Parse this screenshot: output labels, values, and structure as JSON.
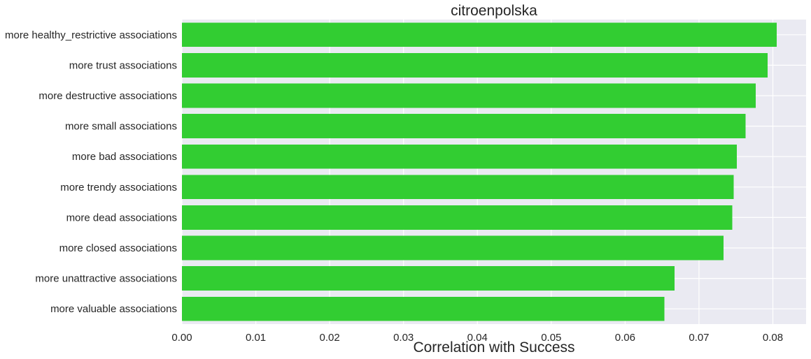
{
  "chart_data": {
    "type": "bar",
    "orientation": "horizontal",
    "title": "citroenpolska",
    "xlabel": "Correlation with Success",
    "ylabel": "",
    "categories": [
      "more healthy_restrictive associations",
      "more trust associations",
      "more destructive associations",
      "more small associations",
      "more bad associations",
      "more trendy associations",
      "more dead associations",
      "more closed associations",
      "more unattractive associations",
      "more valuable associations"
    ],
    "values": [
      0.0805,
      0.0793,
      0.0777,
      0.0763,
      0.0751,
      0.0747,
      0.0745,
      0.0733,
      0.0667,
      0.0653
    ],
    "xlim": [
      0,
      0.0845
    ],
    "xticks": [
      "0.00",
      "0.01",
      "0.02",
      "0.03",
      "0.04",
      "0.05",
      "0.06",
      "0.07",
      "0.08"
    ],
    "grid": true,
    "colors": {
      "bar": "#32cd32",
      "background": "#eaeaf2",
      "grid": "#ffffff",
      "text": "#262626"
    }
  }
}
